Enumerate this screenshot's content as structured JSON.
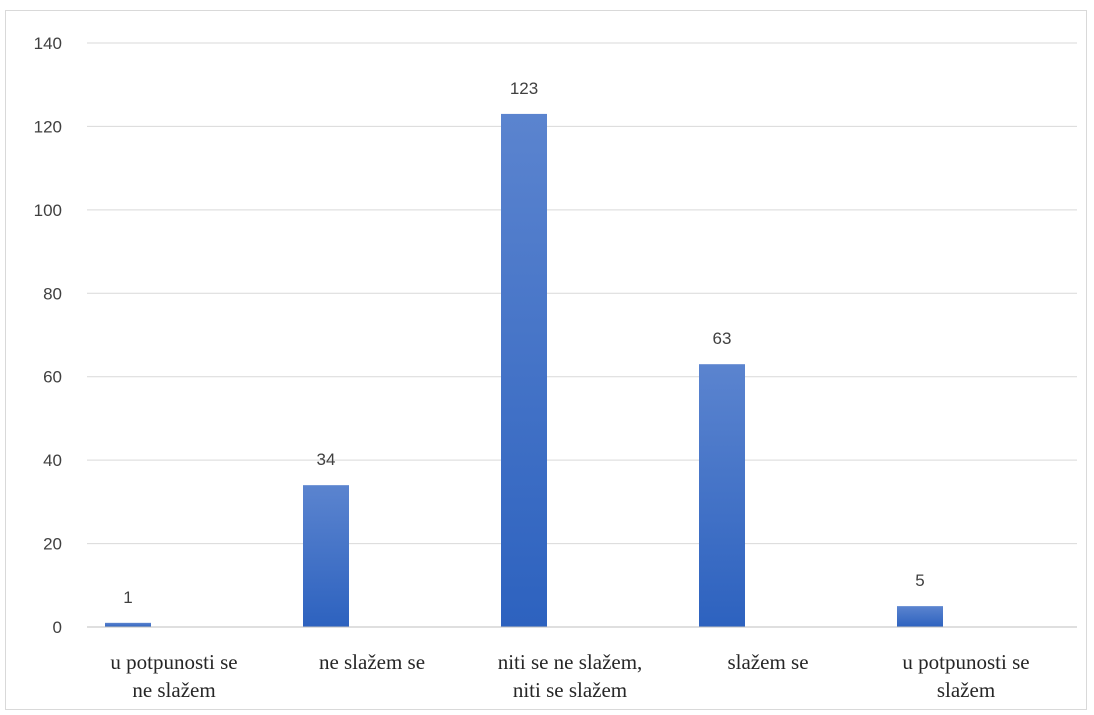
{
  "chart_data": {
    "type": "bar",
    "categories": [
      [
        "u potpunosti se",
        "ne slažem"
      ],
      [
        "ne slažem se"
      ],
      [
        "niti se ne slažem,",
        "niti se slažem"
      ],
      [
        "slažem se"
      ],
      [
        "u potpunosti se",
        "slažem"
      ]
    ],
    "values": [
      1,
      34,
      123,
      63,
      5
    ],
    "data_labels": [
      "1",
      "34",
      "123",
      "63",
      "5"
    ],
    "title": "",
    "xlabel": "",
    "ylabel": "",
    "ylim": [
      0,
      140
    ],
    "yticks": [
      0,
      20,
      40,
      60,
      80,
      100,
      120,
      140
    ],
    "grid": "horizontal",
    "legend": "none",
    "colors": {
      "bar_top": "#5b84cf",
      "bar_bottom": "#2d62bf",
      "grid": "#d9d9d9",
      "axis": "#bfbfbf",
      "text": "#404040"
    }
  }
}
